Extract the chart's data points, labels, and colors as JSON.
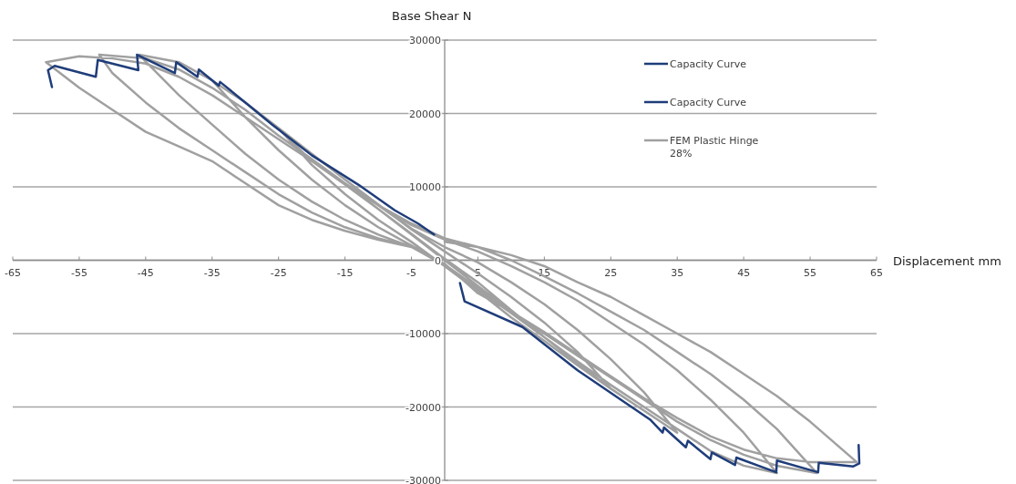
{
  "chart_data": {
    "type": "line",
    "xlabel": "Displacement mm",
    "ylabel": "Base Shear N",
    "xlim": [
      -65,
      65
    ],
    "xticks": [
      -65,
      -55,
      -45,
      -35,
      -25,
      -15,
      -5,
      5,
      15,
      25,
      35,
      45,
      55,
      65
    ],
    "ylim": [
      -30000,
      30000
    ],
    "yticks": [
      -30000,
      -20000,
      -10000,
      0,
      10000,
      20000,
      30000
    ],
    "grid": "y",
    "legend": "top right",
    "marker": "none",
    "line_style": "solid",
    "series": [
      {
        "name": "Capacity Curve",
        "color": "#1f3d7a",
        "x": [
          -59.1,
          -59.7,
          -58.7,
          -52.5,
          -52.2,
          -46.1,
          -46.3,
          -40.6,
          -40.4,
          -37.2,
          -37,
          -34,
          -33.8,
          -30,
          -26,
          -20,
          -13,
          -7.5,
          -4,
          -1.6
        ],
        "values": [
          23600,
          25900,
          26500,
          25000,
          27300,
          25900,
          28000,
          25500,
          27000,
          25000,
          26000,
          23800,
          24300,
          21500,
          18500,
          14300,
          10300,
          6800,
          5000,
          3500
        ]
      },
      {
        "name": "Capacity Curve",
        "color": "#1f3d7a",
        "x": [
          2.3,
          3,
          11.7,
          20,
          30.9,
          32.8,
          33,
          36.3,
          36.6,
          40,
          40.2,
          43.7,
          43.9,
          49.9,
          50,
          56.2,
          56.3,
          61.5,
          62.4,
          62.3
        ],
        "values": [
          -3100,
          -5600,
          -9100,
          -15000,
          -21700,
          -23500,
          -22800,
          -25500,
          -24600,
          -27100,
          -26200,
          -27900,
          -26900,
          -28900,
          -27300,
          -28900,
          -27600,
          -28100,
          -27700,
          -25200
        ]
      },
      {
        "name": "FEM Plastic Hinge 28%",
        "color": "#a0a0a0",
        "x": [
          0,
          -5,
          -10,
          -15,
          -10,
          -5,
          0,
          5,
          10,
          15,
          10,
          5,
          0,
          -5,
          -10,
          -15,
          -20,
          -25,
          -20,
          -15,
          -10,
          -5,
          0,
          5,
          10,
          15,
          20,
          25,
          20,
          15,
          10,
          5,
          0,
          -5,
          -10,
          -15,
          -20,
          -25,
          -30,
          -35,
          -30,
          -25,
          -20,
          -15,
          -10,
          -5,
          0,
          5,
          10,
          15,
          20,
          25,
          30,
          35,
          30,
          25,
          20,
          15,
          10,
          5,
          0,
          -5,
          -10,
          -15,
          -20,
          -25,
          -30,
          -35,
          -40,
          -46,
          -40,
          -35,
          -30,
          -25,
          -20,
          -15,
          -10,
          -5,
          0,
          5,
          10,
          15,
          20,
          25,
          30,
          35,
          40,
          45,
          50,
          45,
          40,
          35,
          30,
          25,
          20,
          15,
          10,
          5,
          0,
          -5,
          -10,
          -15,
          -20,
          -25,
          -30,
          -35,
          -40,
          -45,
          -52,
          -50,
          -45,
          -40,
          -35,
          -30,
          -25,
          -20,
          -15,
          -10,
          -5,
          0,
          5,
          10,
          15,
          20,
          25,
          30,
          35,
          40,
          45,
          50,
          56,
          50,
          45,
          40,
          35,
          30,
          25,
          20,
          15,
          10,
          5,
          0,
          -5,
          -10,
          -15,
          -20,
          -25,
          -30,
          -35,
          -40,
          -45,
          -50,
          -55,
          -60,
          -55,
          -50,
          -45,
          -40,
          -35,
          -30,
          -25,
          -20,
          -15,
          -10,
          -5,
          0,
          5,
          10,
          15,
          20,
          25,
          30,
          35,
          40,
          45,
          50,
          55,
          62,
          55,
          50,
          45,
          40,
          35,
          30,
          25,
          20,
          15,
          10,
          5,
          0
        ],
        "values": [
          0,
          3500,
          7000,
          10500,
          7000,
          3500,
          0,
          -3500,
          -7000,
          -10500,
          -6800,
          -3000,
          200,
          3600,
          7000,
          10300,
          13500,
          18000,
          13000,
          9000,
          5500,
          2500,
          -800,
          -4200,
          -7800,
          -11000,
          -14300,
          -17500,
          -12500,
          -8500,
          -5000,
          -1800,
          1200,
          4200,
          7600,
          11000,
          14500,
          18000,
          21500,
          24500,
          19500,
          15000,
          11000,
          7500,
          4500,
          2000,
          -600,
          -3800,
          -7200,
          -10500,
          -14000,
          -17500,
          -20500,
          -23500,
          -18000,
          -13500,
          -9500,
          -6000,
          -3000,
          -300,
          1800,
          4300,
          7500,
          11000,
          14500,
          18000,
          21500,
          24500,
          27000,
          28000,
          22500,
          18500,
          14500,
          11000,
          8000,
          5500,
          3500,
          1800,
          -700,
          -4000,
          -7200,
          -10500,
          -13800,
          -17000,
          -20000,
          -23000,
          -26000,
          -28000,
          -29000,
          -23500,
          -19000,
          -15000,
          -11500,
          -8500,
          -5500,
          -3000,
          -800,
          1200,
          2800,
          4800,
          7500,
          10500,
          13800,
          17000,
          20500,
          23500,
          26000,
          27500,
          28000,
          25500,
          21500,
          18000,
          15000,
          12000,
          9000,
          6500,
          4500,
          3000,
          1800,
          -600,
          -4200,
          -7000,
          -10000,
          -13000,
          -16000,
          -19000,
          -22000,
          -24500,
          -26500,
          -28000,
          -29000,
          -23000,
          -19000,
          -15500,
          -12500,
          -9500,
          -7000,
          -4500,
          -2200,
          0,
          1800,
          3000,
          5000,
          7500,
          10500,
          13500,
          16500,
          19500,
          22500,
          25000,
          26800,
          27500,
          27800,
          27000,
          23500,
          20500,
          17500,
          15500,
          13500,
          10500,
          7500,
          5500,
          4000,
          2800,
          1800,
          -500,
          -4500,
          -7000,
          -9800,
          -12800,
          -15800,
          -18800,
          -21500,
          -24000,
          -25800,
          -27000,
          -27500,
          -27500,
          -22000,
          -18500,
          -15500,
          -12500,
          -10000,
          -7500,
          -5000,
          -3000,
          -800,
          700,
          1800,
          2500
        ]
      }
    ]
  }
}
